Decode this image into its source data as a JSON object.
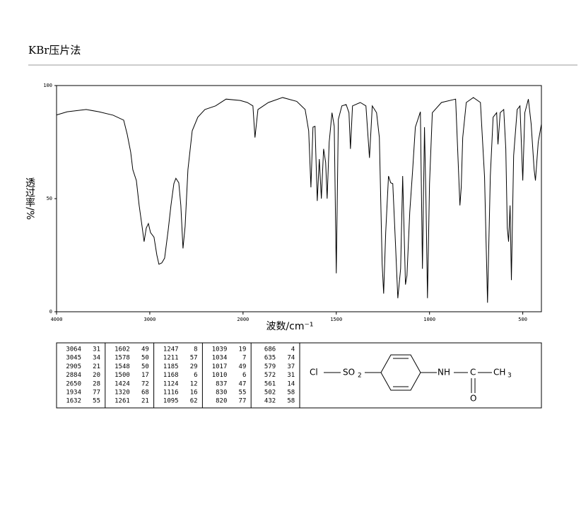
{
  "header": {
    "title": "KBr压片法"
  },
  "chart_data": {
    "type": "line",
    "color": "#000000",
    "ylabel": "透过率/%",
    "xlabel": "波数/cm⁻¹",
    "xlim": [
      4000,
      400
    ],
    "xbreak": 2000,
    "xticks": [
      4000,
      3000,
      2000,
      1500,
      1000,
      500
    ],
    "ylim": [
      0,
      100
    ],
    "yticks": [
      0,
      50,
      100
    ],
    "x": [
      4000,
      3886,
      3682,
      3545,
      3394,
      3280,
      3242,
      3205,
      3182,
      3144,
      3114,
      3083,
      3061,
      3038,
      3015,
      2992,
      2955,
      2924,
      2902,
      2871,
      2841,
      2803,
      2773,
      2742,
      2720,
      2689,
      2667,
      2644,
      2621,
      2591,
      2545,
      2485,
      2409,
      2295,
      2182,
      2030,
      1977,
      1947,
      1936,
      1920,
      1864,
      1788,
      1712,
      1667,
      1648,
      1636,
      1625,
      1614,
      1602,
      1591,
      1580,
      1568,
      1557,
      1549,
      1538,
      1523,
      1511,
      1500,
      1489,
      1470,
      1447,
      1432,
      1424,
      1413,
      1371,
      1341,
      1322,
      1307,
      1284,
      1269,
      1254,
      1246,
      1235,
      1220,
      1208,
      1197,
      1182,
      1170,
      1155,
      1144,
      1129,
      1121,
      1106,
      1091,
      1076,
      1049,
      1038,
      1027,
      1019,
      1011,
      1000,
      985,
      936,
      860,
      837,
      830,
      822,
      803,
      765,
      727,
      705,
      689,
      674,
      659,
      640,
      633,
      621,
      602,
      591,
      583,
      576,
      568,
      561,
      549,
      530,
      515,
      500,
      489,
      470,
      455,
      439,
      432,
      417,
      400
    ],
    "values": [
      87,
      88.4,
      89.4,
      88.4,
      86.9,
      84.7,
      78.4,
      70.6,
      62.8,
      58,
      47,
      37.8,
      31,
      37,
      39,
      35,
      33,
      25,
      21,
      21.6,
      23.7,
      36,
      47,
      56.6,
      59,
      57,
      47,
      28,
      37.8,
      62.8,
      80,
      86,
      89.4,
      91,
      94,
      93.4,
      92.5,
      91,
      77,
      89.4,
      92.5,
      94.7,
      93,
      89.4,
      80,
      55,
      81.6,
      82,
      49,
      67.5,
      50,
      72,
      66,
      50,
      75,
      88,
      82,
      17,
      85,
      91,
      91.6,
      88,
      72,
      91,
      92.5,
      91,
      68,
      91,
      88,
      77,
      21,
      8,
      35,
      60,
      57,
      56.6,
      29,
      6,
      19,
      60,
      12,
      16,
      44,
      62,
      81.6,
      88.4,
      19,
      81.6,
      49,
      6,
      56.6,
      88,
      92.5,
      94,
      47,
      55,
      77,
      92.5,
      94.7,
      92.5,
      59.7,
      4,
      60,
      86,
      88,
      74,
      88,
      89.4,
      72,
      37,
      31,
      47,
      14,
      69,
      89.4,
      91,
      58,
      88,
      94,
      83,
      62.8,
      58,
      75,
      83
    ]
  },
  "peak_table": {
    "columns": [
      [
        [
          3064,
          31
        ],
        [
          3045,
          34
        ],
        [
          2905,
          21
        ],
        [
          2884,
          20
        ],
        [
          2650,
          28
        ],
        [
          1934,
          77
        ],
        [
          1632,
          55
        ]
      ],
      [
        [
          1602,
          49
        ],
        [
          1578,
          50
        ],
        [
          1548,
          50
        ],
        [
          1500,
          17
        ],
        [
          1424,
          72
        ],
        [
          1320,
          68
        ],
        [
          1261,
          21
        ]
      ],
      [
        [
          1247,
          8
        ],
        [
          1211,
          57
        ],
        [
          1185,
          29
        ],
        [
          1168,
          6
        ],
        [
          1124,
          12
        ],
        [
          1116,
          16
        ],
        [
          1095,
          62
        ]
      ],
      [
        [
          1039,
          19
        ],
        [
          1034,
          7
        ],
        [
          1017,
          49
        ],
        [
          1010,
          6
        ],
        [
          837,
          47
        ],
        [
          830,
          55
        ],
        [
          820,
          77
        ]
      ],
      [
        [
          686,
          4
        ],
        [
          635,
          74
        ],
        [
          579,
          37
        ],
        [
          572,
          31
        ],
        [
          561,
          14
        ],
        [
          502,
          58
        ],
        [
          432,
          58
        ]
      ]
    ]
  },
  "structure": {
    "chlorine": "Cl",
    "sulfonyl": "SO",
    "sulfonyl_sub": "2",
    "amine": "NH",
    "carbon": "C",
    "oxygen": "O",
    "methyl": "CH",
    "methyl_sub": "3"
  }
}
